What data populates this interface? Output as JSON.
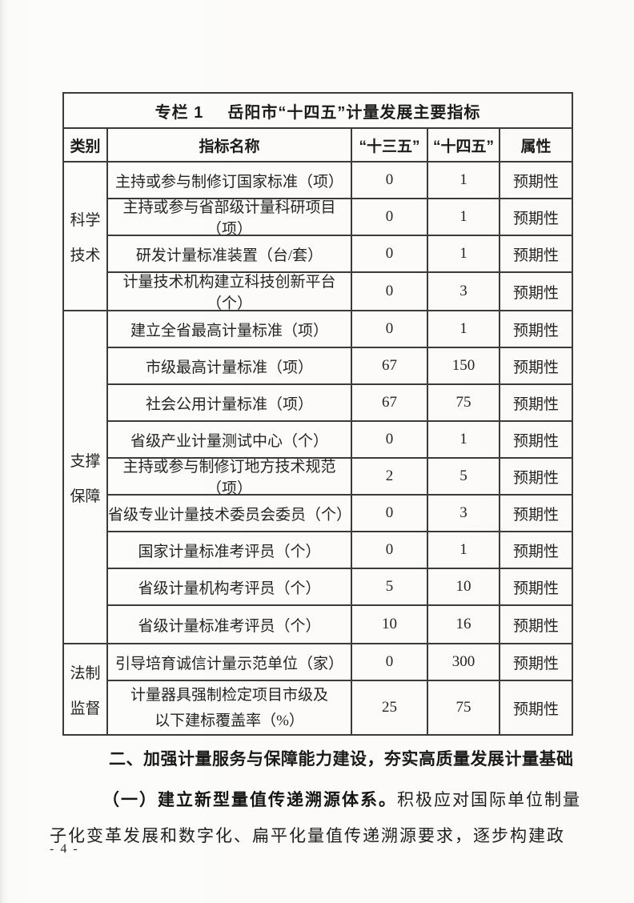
{
  "table": {
    "title": {
      "label": "专栏 1",
      "text": "岳阳市“十四五”计量发展主要指标"
    },
    "headers": [
      "类别",
      "指标名称",
      "“十三五”",
      "“十四五”",
      "属性"
    ],
    "sections": [
      {
        "category": [
          "科学",
          "技术"
        ],
        "rows": [
          {
            "name": "主持或参与制修订国家标准（项）",
            "v13": "0",
            "v14": "1",
            "attr": "预期性"
          },
          {
            "name": "主持或参与省部级计量科研项目（项）",
            "v13": "0",
            "v14": "1",
            "attr": "预期性"
          },
          {
            "name": "研发计量标准装置（台/套）",
            "v13": "0",
            "v14": "1",
            "attr": "预期性"
          },
          {
            "name": "计量技术机构建立科技创新平台（个）",
            "v13": "0",
            "v14": "3",
            "attr": "预期性"
          }
        ]
      },
      {
        "category": [
          "支撑",
          "保障"
        ],
        "rows": [
          {
            "name": "建立全省最高计量标准（项）",
            "v13": "0",
            "v14": "1",
            "attr": "预期性"
          },
          {
            "name": "市级最高计量标准（项）",
            "v13": "67",
            "v14": "150",
            "attr": "预期性"
          },
          {
            "name": "社会公用计量标准（项）",
            "v13": "67",
            "v14": "75",
            "attr": "预期性"
          },
          {
            "name": "省级产业计量测试中心（个）",
            "v13": "0",
            "v14": "1",
            "attr": "预期性"
          },
          {
            "name": "主持或参与制修订地方技术规范（项）",
            "v13": "2",
            "v14": "5",
            "attr": "预期性"
          },
          {
            "name": "省级专业计量技术委员会委员（个）",
            "v13": "0",
            "v14": "3",
            "attr": "预期性"
          },
          {
            "name": "国家计量标准考评员（个）",
            "v13": "0",
            "v14": "1",
            "attr": "预期性"
          },
          {
            "name": "省级计量机构考评员（个）",
            "v13": "5",
            "v14": "10",
            "attr": "预期性"
          },
          {
            "name": "省级计量标准考评员（个）",
            "v13": "10",
            "v14": "16",
            "attr": "预期性"
          }
        ]
      },
      {
        "category": [
          "法制",
          "监督"
        ],
        "rows": [
          {
            "name": "引导培育诚信计量示范单位（家）",
            "v13": "0",
            "v14": "300",
            "attr": "预期性"
          },
          {
            "name": "计量器具强制检定项目市级及",
            "name2": "以下建标覆盖率（%）",
            "v13": "25",
            "v14": "75",
            "attr": "预期性"
          }
        ]
      }
    ]
  },
  "body": {
    "heading": "二、加强计量服务与保障能力建设，夯实高质量发展计量基础",
    "para1_bold": "（一）建立新型量值传递溯源体系。",
    "para1_rest": "积极应对国际单位制量",
    "para2": "子化变革发展和数字化、扁平化量值传递溯源要求，逐步构建政"
  },
  "page": {
    "number": "- 4 -"
  }
}
